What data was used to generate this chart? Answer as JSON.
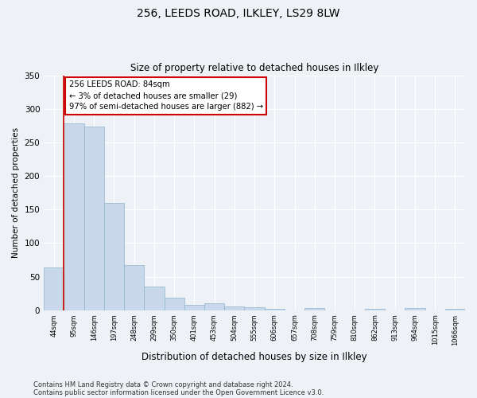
{
  "title": "256, LEEDS ROAD, ILKLEY, LS29 8LW",
  "subtitle": "Size of property relative to detached houses in Ilkley",
  "xlabel": "Distribution of detached houses by size in Ilkley",
  "ylabel": "Number of detached properties",
  "categories": [
    "44sqm",
    "95sqm",
    "146sqm",
    "197sqm",
    "248sqm",
    "299sqm",
    "350sqm",
    "401sqm",
    "453sqm",
    "504sqm",
    "555sqm",
    "606sqm",
    "657sqm",
    "708sqm",
    "759sqm",
    "810sqm",
    "862sqm",
    "913sqm",
    "964sqm",
    "1015sqm",
    "1066sqm"
  ],
  "values": [
    64,
    278,
    273,
    160,
    67,
    35,
    19,
    8,
    10,
    5,
    4,
    2,
    0,
    3,
    0,
    0,
    2,
    0,
    3,
    0,
    2
  ],
  "bar_color": "#c8d8ea",
  "bar_edge_color": "#90b4cc",
  "ylim": [
    0,
    350
  ],
  "yticks": [
    0,
    50,
    100,
    150,
    200,
    250,
    300,
    350
  ],
  "annotation_text_line1": "256 LEEDS ROAD: 84sqm",
  "annotation_text_line2": "← 3% of detached houses are smaller (29)",
  "annotation_text_line3": "97% of semi-detached houses are larger (882) →",
  "annotation_box_color": "#ffffff",
  "annotation_border_color": "#cc0000",
  "red_line_x": 0.5,
  "footnote1": "Contains HM Land Registry data © Crown copyright and database right 2024.",
  "footnote2": "Contains public sector information licensed under the Open Government Licence v3.0.",
  "background_color": "#eef2f7",
  "grid_color": "#ffffff"
}
